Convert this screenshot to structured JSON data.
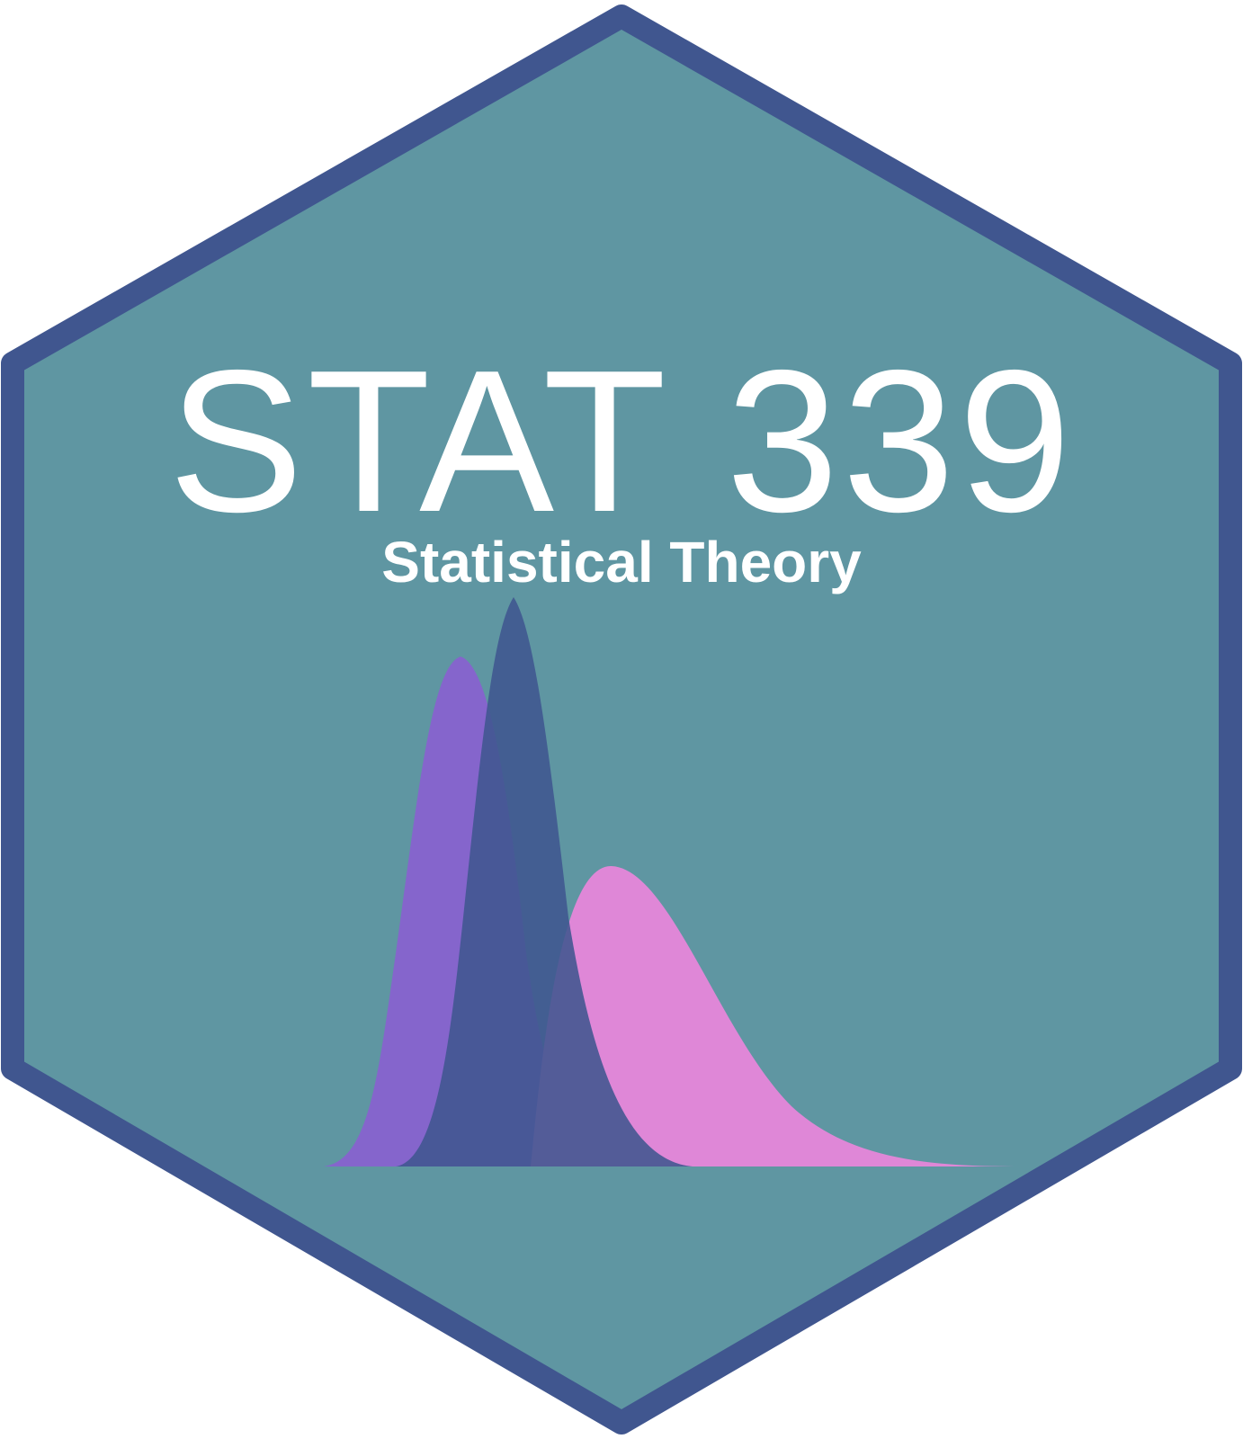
{
  "sticker": {
    "course_code": "STAT 339",
    "course_title": "Statistical Theory"
  },
  "colors": {
    "hex_fill": "#5f96a2",
    "hex_border": "#40568f",
    "curve_left": "#8565cc",
    "curve_center": "#40568f",
    "curve_right": "#df87d7"
  },
  "icons": {
    "distribution_curves": "three-overlapping-density-curves-icon"
  }
}
